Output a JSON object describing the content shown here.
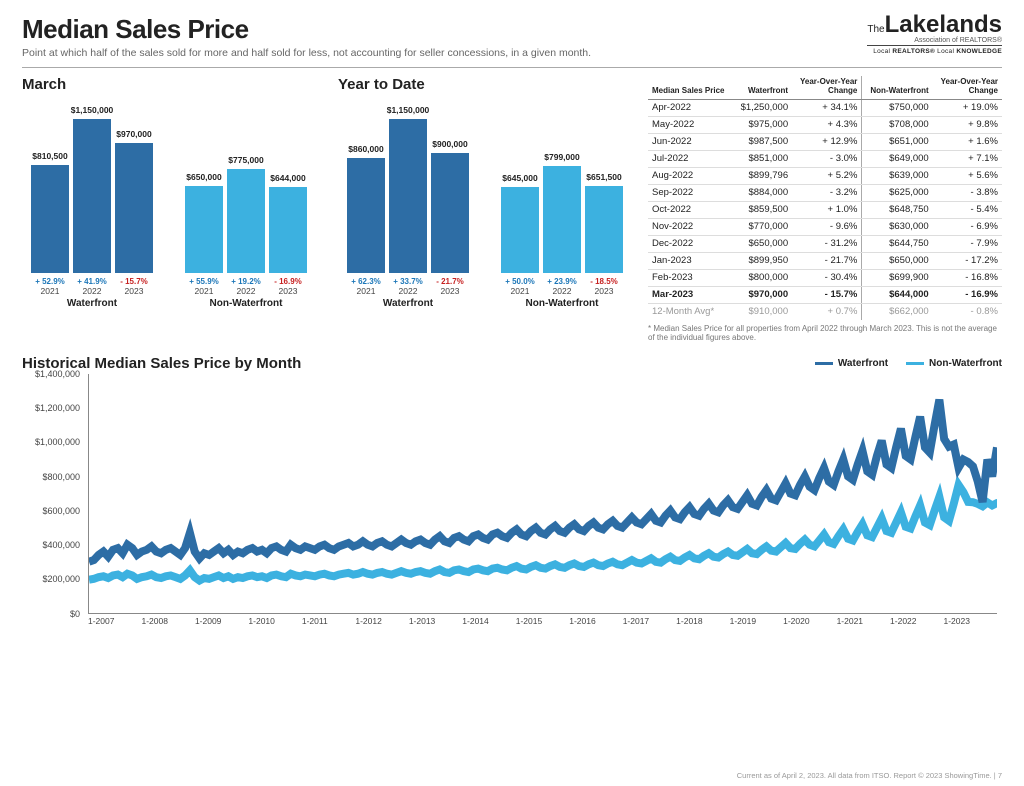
{
  "header": {
    "title": "Median Sales Price",
    "subtitle": "Point at which half of the sales sold for more and half sold for less, not accounting for seller concessions, in a given month.",
    "logo_the": "The",
    "logo_main": "Lakelands",
    "logo_sub": "Association of REALTORS®",
    "logo_tagline_1": "Local",
    "logo_tagline_2": "REALTORS®",
    "logo_tagline_3": "Local",
    "logo_tagline_4": "KNOWLEDGE"
  },
  "colors": {
    "waterfront": "#2d6da5",
    "non_waterfront": "#3cb1e0",
    "pos": "#1b76b8",
    "neg": "#c62020",
    "grid": "#dddddd"
  },
  "bar_charts": {
    "march": {
      "title": "March",
      "max_value": 1300000,
      "groups": [
        {
          "label": "Waterfront",
          "color": "#2d6da5",
          "bars": [
            {
              "year": "2021",
              "value": 810500,
              "label": "$810,500",
              "pct": "+ 52.9%",
              "pct_pos": true
            },
            {
              "year": "2022",
              "value": 1150000,
              "label": "$1,150,000",
              "pct": "+ 41.9%",
              "pct_pos": true
            },
            {
              "year": "2023",
              "value": 970000,
              "label": "$970,000",
              "pct": "- 15.7%",
              "pct_pos": false
            }
          ]
        },
        {
          "label": "Non-Waterfront",
          "color": "#3cb1e0",
          "bars": [
            {
              "year": "2021",
              "value": 650000,
              "label": "$650,000",
              "pct": "+ 55.9%",
              "pct_pos": true
            },
            {
              "year": "2022",
              "value": 775000,
              "label": "$775,000",
              "pct": "+ 19.2%",
              "pct_pos": true
            },
            {
              "year": "2023",
              "value": 644000,
              "label": "$644,000",
              "pct": "- 16.9%",
              "pct_pos": false
            }
          ]
        }
      ]
    },
    "ytd": {
      "title": "Year to Date",
      "max_value": 1300000,
      "groups": [
        {
          "label": "Waterfront",
          "color": "#2d6da5",
          "bars": [
            {
              "year": "2021",
              "value": 860000,
              "label": "$860,000",
              "pct": "+ 62.3%",
              "pct_pos": true
            },
            {
              "year": "2022",
              "value": 1150000,
              "label": "$1,150,000",
              "pct": "+ 33.7%",
              "pct_pos": true
            },
            {
              "year": "2023",
              "value": 900000,
              "label": "$900,000",
              "pct": "- 21.7%",
              "pct_pos": false
            }
          ]
        },
        {
          "label": "Non-Waterfront",
          "color": "#3cb1e0",
          "bars": [
            {
              "year": "2021",
              "value": 645000,
              "label": "$645,000",
              "pct": "+ 50.0%",
              "pct_pos": true
            },
            {
              "year": "2022",
              "value": 799000,
              "label": "$799,000",
              "pct": "+ 23.9%",
              "pct_pos": true
            },
            {
              "year": "2023",
              "value": 651500,
              "label": "$651,500",
              "pct": "- 18.5%",
              "pct_pos": false
            }
          ]
        }
      ]
    }
  },
  "table": {
    "headers": [
      "Median Sales Price",
      "Waterfront",
      "Year-Over-Year Change",
      "Non-Waterfront",
      "Year-Over-Year Change"
    ],
    "rows": [
      {
        "m": "Apr-2022",
        "wf": "$1,250,000",
        "wfc": "+ 34.1%",
        "nwf": "$750,000",
        "nwfc": "+ 19.0%"
      },
      {
        "m": "May-2022",
        "wf": "$975,000",
        "wfc": "+ 4.3%",
        "nwf": "$708,000",
        "nwfc": "+ 9.8%"
      },
      {
        "m": "Jun-2022",
        "wf": "$987,500",
        "wfc": "+ 12.9%",
        "nwf": "$651,000",
        "nwfc": "+ 1.6%"
      },
      {
        "m": "Jul-2022",
        "wf": "$851,000",
        "wfc": "- 3.0%",
        "nwf": "$649,000",
        "nwfc": "+ 7.1%"
      },
      {
        "m": "Aug-2022",
        "wf": "$899,796",
        "wfc": "+ 5.2%",
        "nwf": "$639,000",
        "nwfc": "+ 5.6%"
      },
      {
        "m": "Sep-2022",
        "wf": "$884,000",
        "wfc": "- 3.2%",
        "nwf": "$625,000",
        "nwfc": "- 3.8%"
      },
      {
        "m": "Oct-2022",
        "wf": "$859,500",
        "wfc": "+ 1.0%",
        "nwf": "$648,750",
        "nwfc": "- 5.4%"
      },
      {
        "m": "Nov-2022",
        "wf": "$770,000",
        "wfc": "- 9.6%",
        "nwf": "$630,000",
        "nwfc": "- 6.9%"
      },
      {
        "m": "Dec-2022",
        "wf": "$650,000",
        "wfc": "- 31.2%",
        "nwf": "$644,750",
        "nwfc": "- 7.9%"
      },
      {
        "m": "Jan-2023",
        "wf": "$899,950",
        "wfc": "- 21.7%",
        "nwf": "$650,000",
        "nwfc": "- 17.2%"
      },
      {
        "m": "Feb-2023",
        "wf": "$800,000",
        "wfc": "- 30.4%",
        "nwf": "$699,900",
        "nwfc": "- 16.8%"
      },
      {
        "m": "Mar-2023",
        "wf": "$970,000",
        "wfc": "- 15.7%",
        "nwf": "$644,000",
        "nwfc": "- 16.9%",
        "bold": true
      }
    ],
    "avg_row": {
      "m": "12-Month Avg*",
      "wf": "$910,000",
      "wfc": "+ 0.7%",
      "nwf": "$662,000",
      "nwfc": "- 0.8%"
    },
    "footnote": "* Median Sales Price for all properties from April 2022 through March 2023. This is not the average of the individual figures above."
  },
  "history": {
    "title": "Historical Median Sales Price by Month",
    "legend": [
      {
        "label": "Waterfront",
        "color": "#2d6da5"
      },
      {
        "label": "Non-Waterfront",
        "color": "#3cb1e0"
      }
    ],
    "y_max": 1400000,
    "y_ticks": [
      "$1,400,000",
      "$1,200,000",
      "$1,000,000",
      "$800,000",
      "$600,000",
      "$400,000",
      "$200,000",
      "$0"
    ],
    "x_ticks": [
      "1-2007",
      "1-2008",
      "1-2009",
      "1-2010",
      "1-2011",
      "1-2012",
      "1-2013",
      "1-2014",
      "1-2015",
      "1-2016",
      "1-2017",
      "1-2018",
      "1-2019",
      "1-2020",
      "1-2021",
      "1-2022",
      "1-2023"
    ],
    "series": {
      "waterfront": {
        "color": "#2d6da5",
        "stroke_width": 2,
        "values": [
          300,
          310,
          340,
          360,
          330,
          370,
          380,
          350,
          400,
          380,
          340,
          360,
          370,
          390,
          360,
          350,
          370,
          380,
          360,
          340,
          380,
          470,
          360,
          320,
          350,
          340,
          360,
          380,
          350,
          370,
          340,
          360,
          350,
          370,
          380,
          360,
          370,
          350,
          380,
          390,
          370,
          360,
          400,
          380,
          370,
          390,
          380,
          370,
          390,
          400,
          380,
          370,
          390,
          400,
          410,
          390,
          400,
          420,
          400,
          390,
          410,
          420,
          400,
          390,
          410,
          430,
          410,
          400,
          420,
          430,
          410,
          400,
          430,
          450,
          420,
          410,
          440,
          450,
          430,
          420,
          450,
          460,
          440,
          430,
          460,
          470,
          450,
          440,
          470,
          490,
          460,
          450,
          480,
          500,
          470,
          460,
          490,
          510,
          480,
          470,
          500,
          520,
          490,
          480,
          510,
          530,
          500,
          490,
          520,
          540,
          510,
          500,
          530,
          560,
          530,
          520,
          550,
          580,
          540,
          530,
          570,
          600,
          560,
          550,
          590,
          620,
          580,
          570,
          610,
          640,
          600,
          590,
          630,
          660,
          620,
          610,
          650,
          690,
          640,
          630,
          680,
          720,
          670,
          660,
          710,
          760,
          700,
          690,
          750,
          800,
          740,
          720,
          790,
          850,
          770,
          750,
          830,
          900,
          800,
          780,
          870,
          950,
          830,
          810,
          920,
          1010,
          870,
          850,
          970,
          1080,
          920,
          900,
          1030,
          1150,
          970,
          940,
          1100,
          1250,
          1020,
          975,
          987,
          851,
          899,
          884,
          859,
          770,
          650,
          899,
          800,
          970
        ]
      },
      "non_waterfront": {
        "color": "#3cb1e0",
        "stroke_width": 2,
        "values": [
          195,
          200,
          210,
          215,
          205,
          220,
          225,
          210,
          230,
          220,
          200,
          210,
          215,
          225,
          210,
          205,
          215,
          220,
          210,
          200,
          220,
          250,
          210,
          190,
          205,
          200,
          210,
          220,
          205,
          215,
          200,
          210,
          205,
          215,
          220,
          210,
          215,
          205,
          220,
          225,
          215,
          210,
          230,
          220,
          215,
          225,
          220,
          215,
          225,
          230,
          220,
          215,
          225,
          230,
          235,
          225,
          230,
          240,
          230,
          225,
          235,
          240,
          230,
          225,
          235,
          245,
          235,
          230,
          240,
          245,
          235,
          230,
          245,
          255,
          240,
          235,
          250,
          255,
          245,
          240,
          255,
          260,
          250,
          245,
          260,
          265,
          255,
          250,
          265,
          275,
          260,
          255,
          270,
          280,
          265,
          260,
          275,
          285,
          270,
          265,
          280,
          290,
          275,
          270,
          285,
          295,
          280,
          275,
          290,
          300,
          285,
          280,
          295,
          310,
          295,
          290,
          305,
          320,
          300,
          295,
          315,
          330,
          310,
          305,
          325,
          340,
          320,
          315,
          335,
          350,
          330,
          325,
          345,
          360,
          340,
          335,
          355,
          375,
          350,
          345,
          370,
          390,
          365,
          360,
          385,
          410,
          380,
          375,
          405,
          430,
          400,
          390,
          425,
          460,
          415,
          405,
          450,
          490,
          435,
          425,
          475,
          520,
          455,
          445,
          500,
          555,
          480,
          470,
          530,
          590,
          505,
          495,
          565,
          630,
          530,
          515,
          600,
          680,
          560,
          540,
          640,
          750,
          708,
          651,
          649,
          639,
          625,
          648,
          630,
          644,
          650,
          699,
          644
        ]
      }
    }
  },
  "footer": "Current as of April 2, 2023. All data from ITSO. Report © 2023 ShowingTime.  |  7"
}
